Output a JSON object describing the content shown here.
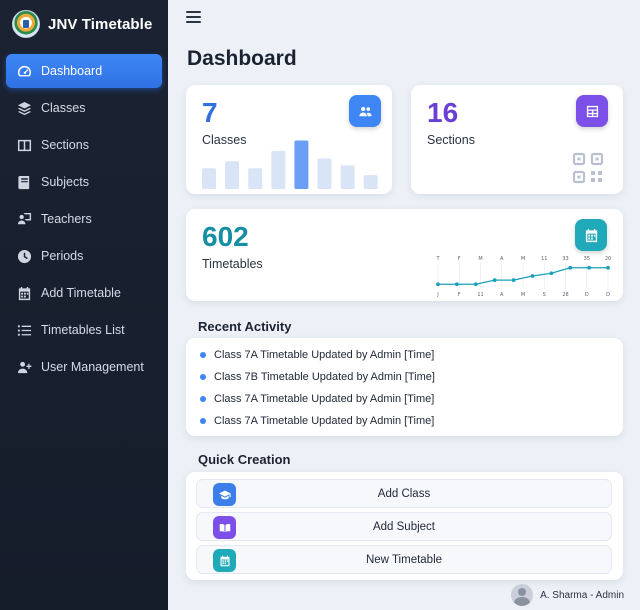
{
  "app": {
    "title": "JNV Timetable"
  },
  "sidebar": {
    "items": [
      {
        "label": "Dashboard",
        "icon": "gauge-icon",
        "active": true
      },
      {
        "label": "Classes",
        "icon": "layers-icon"
      },
      {
        "label": "Sections",
        "icon": "columns-icon"
      },
      {
        "label": "Subjects",
        "icon": "book-icon"
      },
      {
        "label": "Teachers",
        "icon": "teacher-icon"
      },
      {
        "label": "Periods",
        "icon": "clock-icon"
      },
      {
        "label": "Add Timetable",
        "icon": "calendar-icon"
      },
      {
        "label": "Timetables List",
        "icon": "list-icon"
      },
      {
        "label": "User Management",
        "icon": "user-plus-icon"
      }
    ]
  },
  "header": {
    "page_title": "Dashboard"
  },
  "stats": {
    "classes": {
      "value": "7",
      "label": "Classes",
      "color": "#2f6fe0",
      "icon": "users-icon",
      "badge_color": "#3d86f4"
    },
    "sections": {
      "value": "16",
      "label": "Sections",
      "color": "#6a3fd6",
      "icon": "table-icon",
      "badge_color": "#7b4fe8"
    },
    "timetables": {
      "value": "602",
      "label": "Timetables",
      "color": "#158fa3",
      "icon": "calendar-icon",
      "badge_color": "#20a9b8"
    }
  },
  "classes_bars": {
    "values": [
      3,
      4,
      3,
      5.5,
      7,
      4.4,
      3.4,
      2
    ],
    "highlight_index": 4
  },
  "timetable_chart": {
    "type": "line",
    "top_ticks": [
      "T",
      "F",
      "M",
      "A",
      "M",
      "11",
      "33",
      "35",
      "20"
    ],
    "bottom_ticks": [
      "J",
      "F",
      "11",
      "A",
      "M",
      "S",
      "28",
      "D",
      "D"
    ],
    "values": [
      1,
      1,
      1,
      2.5,
      2.5,
      4,
      5,
      7,
      7,
      7
    ],
    "ymax": 8,
    "line_color": "#1aa0b8"
  },
  "recent_activity": {
    "title": "Recent Activity",
    "items": [
      "Class 7A Timetable Updated by Admin [Time]",
      "Class 7B Timetable Updated by Admin [Time]",
      "Class 7A Timetable Updated by Admin [Time]",
      "Class 7A Timetable Updated by Admin [Time]"
    ]
  },
  "quick_creation": {
    "title": "Quick Creation",
    "buttons": [
      {
        "label": "Add Class",
        "icon": "graduation-cap-icon",
        "color": "#3d7fea"
      },
      {
        "label": "Add Subject",
        "icon": "open-book-icon",
        "color": "#7b4fe8"
      },
      {
        "label": "New Timetable",
        "icon": "calendar-icon",
        "color": "#20a9b8"
      }
    ]
  },
  "user": {
    "name": "A. Sharma - Admin"
  }
}
